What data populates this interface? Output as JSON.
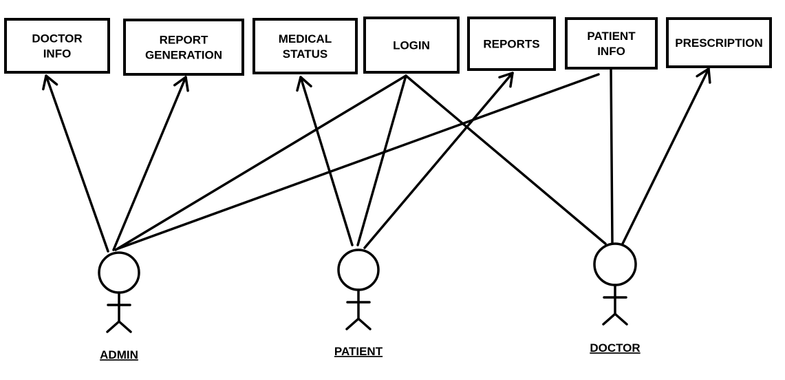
{
  "use_cases": [
    {
      "id": "doctor-info",
      "lines": [
        "DOCTOR",
        "INFO"
      ]
    },
    {
      "id": "report-generation",
      "lines": [
        "REPORT",
        "GENERATION"
      ]
    },
    {
      "id": "medical-status",
      "lines": [
        "MEDICAL",
        "STATUS"
      ]
    },
    {
      "id": "login",
      "lines": [
        "LOGIN"
      ]
    },
    {
      "id": "reports",
      "lines": [
        "REPORTS"
      ]
    },
    {
      "id": "patient-info",
      "lines": [
        "PATIENT",
        "INFO"
      ]
    },
    {
      "id": "prescription",
      "lines": [
        "PRESCRIPTION"
      ]
    }
  ],
  "actors": [
    {
      "id": "admin",
      "label": "ADMIN"
    },
    {
      "id": "patient",
      "label": "PATIENT"
    },
    {
      "id": "doctor",
      "label": "DOCTOR"
    }
  ],
  "edges": [
    {
      "from": "admin",
      "to": "doctor-info",
      "arrow": true
    },
    {
      "from": "admin",
      "to": "report-generation",
      "arrow": true
    },
    {
      "from": "admin",
      "to": "login",
      "arrow": false
    },
    {
      "from": "admin",
      "to": "patient-info",
      "arrow": false
    },
    {
      "from": "patient",
      "to": "medical-status",
      "arrow": true
    },
    {
      "from": "patient",
      "to": "login",
      "arrow": false
    },
    {
      "from": "patient",
      "to": "reports",
      "arrow": true
    },
    {
      "from": "doctor",
      "to": "login",
      "arrow": false
    },
    {
      "from": "doctor",
      "to": "patient-info",
      "arrow": false
    },
    {
      "from": "doctor",
      "to": "prescription",
      "arrow": true
    }
  ]
}
